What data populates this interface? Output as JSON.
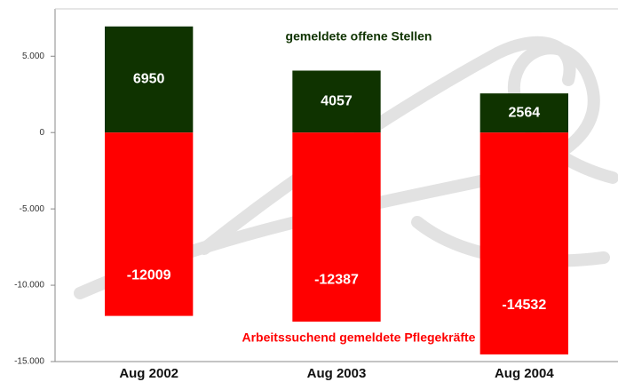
{
  "chart_data": {
    "type": "bar",
    "categories": [
      "Aug 2002",
      "Aug 2003",
      "Aug 2004"
    ],
    "series": [
      {
        "name": "gemeldete offene Stellen",
        "color": "#0f3300",
        "label_color": "#0f3300",
        "values": [
          6950,
          4057,
          2564
        ]
      },
      {
        "name": "Arbeitssuchend gemeldete Pflegekräfte",
        "color": "#ff0000",
        "label_color": "#ff0000",
        "values": [
          -12009,
          -12387,
          -14532
        ]
      }
    ],
    "ylim": [
      -15000,
      8100
    ],
    "yticks": [
      {
        "value": 5000,
        "label": "5.000"
      },
      0,
      {
        "value": -5000,
        "label": "-5.000"
      },
      {
        "value": -10000,
        "label": "-10.000"
      },
      {
        "value": -15000,
        "label": "-15.000"
      }
    ],
    "grid": false
  }
}
